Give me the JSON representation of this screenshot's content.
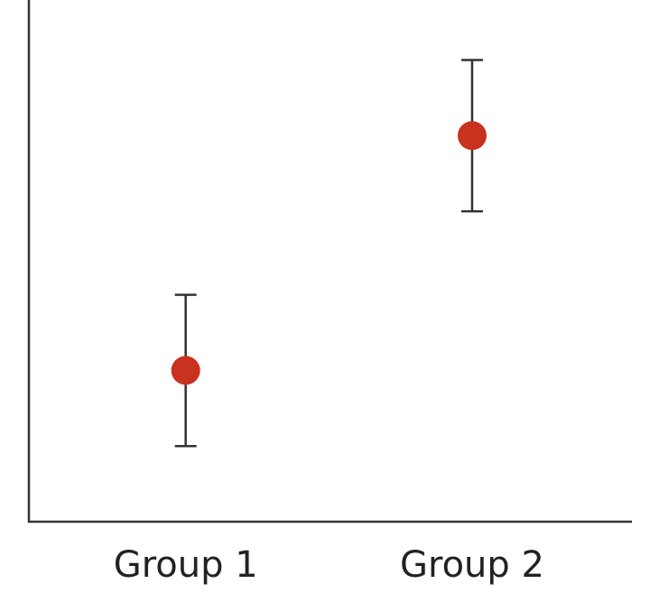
{
  "chart_data": {
    "type": "errorbar",
    "categories": [
      "Group 1",
      "Group 2"
    ],
    "values": [
      2.9,
      7.4
    ],
    "errors": [
      1.45,
      1.45
    ],
    "color": "#c8321e",
    "ylim": [
      0,
      10
    ]
  }
}
